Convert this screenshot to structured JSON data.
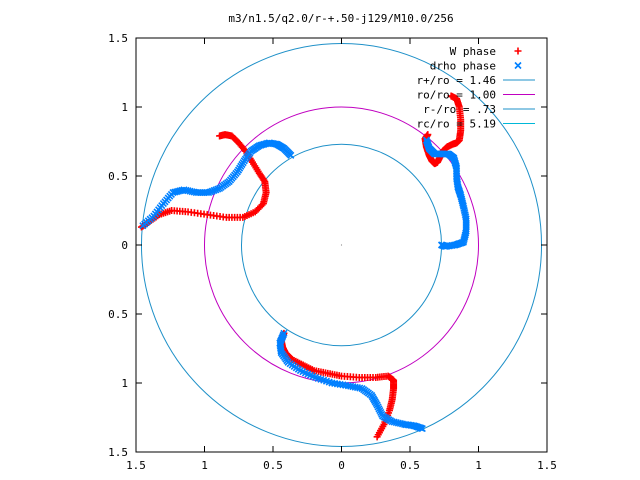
{
  "chart_data": {
    "type": "scatter",
    "title": "m3/n1.5/q2.0/r-+.50-j129/M10.0/256",
    "xlabel": "",
    "ylabel": "",
    "xlim": [
      -1.5,
      1.5
    ],
    "ylim": [
      -1.5,
      1.5
    ],
    "xticks": [
      -1.5,
      -1,
      -0.5,
      0,
      0.5,
      1,
      1.5
    ],
    "yticks": [
      -1.5,
      -1,
      -0.5,
      0,
      0.5,
      1,
      1.5
    ],
    "xtick_labels": [
      "1.5",
      "1",
      "0.5",
      "0",
      "0.5",
      "1",
      "1.5"
    ],
    "ytick_labels": [
      "1.5",
      "1",
      "0.5",
      "0",
      "0.5",
      "1",
      "1.5"
    ],
    "grid": false,
    "legend_position": "top-right",
    "legend": [
      {
        "label": "W phase",
        "marker": "+",
        "color": "#ff0000"
      },
      {
        "label": "drho phase",
        "marker": "x",
        "color": "#0080ff"
      },
      {
        "label": "r+/ro = 1.46",
        "line": true,
        "color": "#1e90c8"
      },
      {
        "label": "ro/ro = 1.00",
        "line": true,
        "color": "#c000c0"
      },
      {
        "label": "r-/ro = .73",
        "line": true,
        "color": "#1e90c8"
      },
      {
        "label": "rc/ro = 5.19",
        "line": true,
        "color": "#00b8d8"
      }
    ],
    "circles": [
      {
        "radius": 1.46,
        "color": "#1e90c8"
      },
      {
        "radius": 1.0,
        "color": "#c000c0"
      },
      {
        "radius": 0.73,
        "color": "#1e90c8"
      }
    ],
    "series": [
      {
        "name": "W phase",
        "color": "#ff0000",
        "arms": [
          [
            [
              0.63,
              0.8
            ],
            [
              0.61,
              0.77
            ],
            [
              0.62,
              0.71
            ],
            [
              0.64,
              0.65
            ],
            [
              0.66,
              0.61
            ],
            [
              0.68,
              0.59
            ],
            [
              0.7,
              0.6
            ],
            [
              0.72,
              0.64
            ],
            [
              0.74,
              0.68
            ],
            [
              0.77,
              0.71
            ],
            [
              0.81,
              0.73
            ],
            [
              0.84,
              0.74
            ],
            [
              0.86,
              0.76
            ],
            [
              0.87,
              0.83
            ],
            [
              0.87,
              0.91
            ],
            [
              0.86,
              1.0
            ],
            [
              0.84,
              1.06
            ],
            [
              0.8,
              1.08
            ]
          ],
          [
            [
              -0.89,
              0.79
            ],
            [
              -0.85,
              0.8
            ],
            [
              -0.8,
              0.79
            ],
            [
              -0.75,
              0.74
            ],
            [
              -0.7,
              0.68
            ],
            [
              -0.65,
              0.6
            ],
            [
              -0.6,
              0.52
            ],
            [
              -0.56,
              0.46
            ],
            [
              -0.55,
              0.38
            ],
            [
              -0.57,
              0.3
            ],
            [
              -0.63,
              0.24
            ],
            [
              -0.72,
              0.2
            ],
            [
              -0.84,
              0.2
            ],
            [
              -0.98,
              0.22
            ],
            [
              -1.12,
              0.24
            ],
            [
              -1.24,
              0.25
            ],
            [
              -1.33,
              0.22
            ],
            [
              -1.4,
              0.17
            ],
            [
              -1.46,
              0.13
            ]
          ],
          [
            [
              0.26,
              -1.39
            ],
            [
              0.31,
              -1.3
            ],
            [
              0.35,
              -1.2
            ],
            [
              0.37,
              -1.12
            ],
            [
              0.38,
              -1.04
            ],
            [
              0.38,
              -0.98
            ],
            [
              0.34,
              -0.95
            ],
            [
              0.25,
              -0.96
            ],
            [
              0.13,
              -0.96
            ],
            [
              0.0,
              -0.95
            ],
            [
              -0.1,
              -0.93
            ],
            [
              -0.2,
              -0.91
            ],
            [
              -0.28,
              -0.87
            ],
            [
              -0.36,
              -0.83
            ],
            [
              -0.41,
              -0.78
            ],
            [
              -0.43,
              -0.74
            ],
            [
              -0.44,
              -0.69
            ],
            [
              -0.42,
              -0.64
            ]
          ]
        ]
      },
      {
        "name": "drho phase",
        "color": "#0080ff",
        "arms": [
          [
            [
              0.62,
              0.76
            ],
            [
              0.64,
              0.7
            ],
            [
              0.68,
              0.66
            ],
            [
              0.73,
              0.66
            ],
            [
              0.78,
              0.66
            ],
            [
              0.82,
              0.63
            ],
            [
              0.84,
              0.56
            ],
            [
              0.84,
              0.49
            ],
            [
              0.85,
              0.42
            ],
            [
              0.87,
              0.36
            ],
            [
              0.89,
              0.28
            ],
            [
              0.91,
              0.19
            ],
            [
              0.91,
              0.1
            ],
            [
              0.89,
              0.02
            ],
            [
              0.83,
              0.0
            ],
            [
              0.76,
              -0.01
            ],
            [
              0.73,
              0.0
            ]
          ],
          [
            [
              -0.37,
              0.65
            ],
            [
              -0.42,
              0.7
            ],
            [
              -0.47,
              0.73
            ],
            [
              -0.53,
              0.74
            ],
            [
              -0.6,
              0.72
            ],
            [
              -0.66,
              0.68
            ],
            [
              -0.71,
              0.61
            ],
            [
              -0.76,
              0.53
            ],
            [
              -0.82,
              0.46
            ],
            [
              -0.89,
              0.41
            ],
            [
              -0.97,
              0.38
            ],
            [
              -1.06,
              0.38
            ],
            [
              -1.15,
              0.4
            ],
            [
              -1.23,
              0.38
            ],
            [
              -1.3,
              0.3
            ],
            [
              -1.37,
              0.21
            ],
            [
              -1.45,
              0.14
            ]
          ],
          [
            [
              -0.42,
              -0.64
            ],
            [
              -0.45,
              -0.71
            ],
            [
              -0.44,
              -0.78
            ],
            [
              -0.39,
              -0.85
            ],
            [
              -0.3,
              -0.91
            ],
            [
              -0.19,
              -0.96
            ],
            [
              -0.07,
              -1.0
            ],
            [
              0.05,
              -1.02
            ],
            [
              0.15,
              -1.04
            ],
            [
              0.22,
              -1.09
            ],
            [
              0.26,
              -1.16
            ],
            [
              0.3,
              -1.24
            ],
            [
              0.37,
              -1.28
            ],
            [
              0.46,
              -1.3
            ],
            [
              0.53,
              -1.31
            ],
            [
              0.59,
              -1.33
            ]
          ]
        ]
      }
    ]
  }
}
